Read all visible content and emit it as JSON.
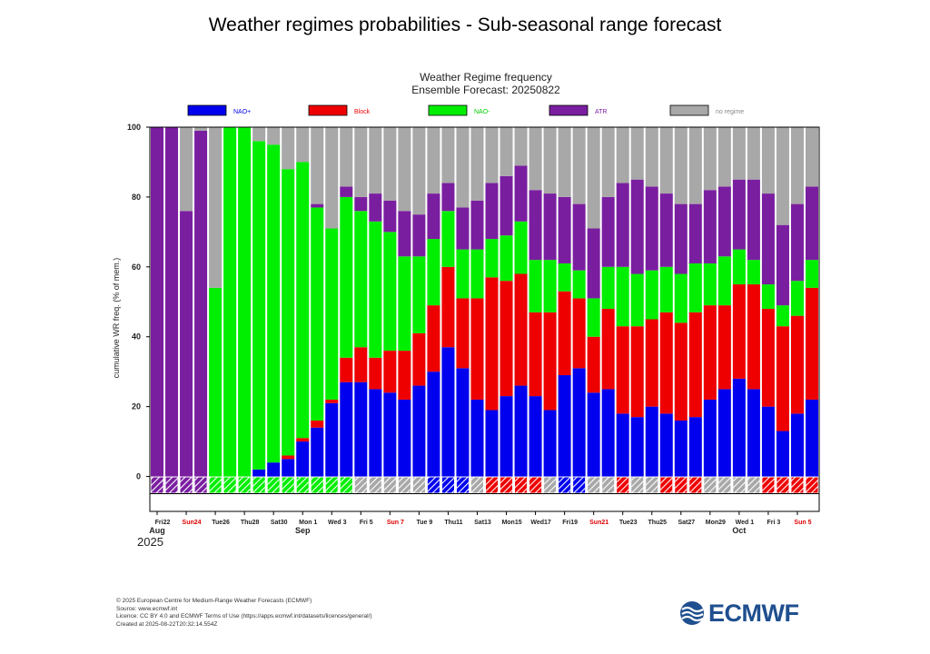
{
  "page_title": "Weather regimes probabilities - Sub-seasonal range forecast",
  "colors": {
    "NAO+": "#0000ee",
    "Block": "#ee0000",
    "NAO-": "#00ee00",
    "ATR": "#7a1ea0",
    "no regime": "#a8a8a8",
    "brand": "#1f4f8f"
  },
  "chart_data": {
    "type": "bar",
    "stacked": true,
    "title": "Weather Regime frequency",
    "subtitle": "Ensemble Forecast: 20250822",
    "ylabel": "cumulative WR freq. (% of mem.)",
    "ylim": [
      -10,
      100
    ],
    "yticks": [
      "0",
      "20",
      "40",
      "60",
      "80",
      "100"
    ],
    "legend": [
      {
        "name": "NAO+",
        "color": "#0000ee"
      },
      {
        "name": "Block",
        "color": "#ee0000"
      },
      {
        "name": "NAO-",
        "color": "#00ee00"
      },
      {
        "name": "ATR",
        "color": "#7a1ea0"
      },
      {
        "name": "no regime",
        "color": "#a8a8a8"
      }
    ],
    "legend_position": "top",
    "year": "2025",
    "x_day_labels": [
      {
        "i": 0,
        "text": "Fri22",
        "red": false
      },
      {
        "i": 2,
        "text": "Sun24",
        "red": true
      },
      {
        "i": 4,
        "text": "Tue26",
        "red": false
      },
      {
        "i": 6,
        "text": "Thu28",
        "red": false
      },
      {
        "i": 8,
        "text": "Sat30",
        "red": false
      },
      {
        "i": 10,
        "text": "Mon 1",
        "red": false
      },
      {
        "i": 12,
        "text": "Wed 3",
        "red": false
      },
      {
        "i": 14,
        "text": "Fri 5",
        "red": false
      },
      {
        "i": 16,
        "text": "Sun 7",
        "red": true
      },
      {
        "i": 18,
        "text": "Tue 9",
        "red": false
      },
      {
        "i": 20,
        "text": "Thu11",
        "red": false
      },
      {
        "i": 22,
        "text": "Sat13",
        "red": false
      },
      {
        "i": 24,
        "text": "Mon15",
        "red": false
      },
      {
        "i": 26,
        "text": "Wed17",
        "red": false
      },
      {
        "i": 28,
        "text": "Fri19",
        "red": false
      },
      {
        "i": 30,
        "text": "Sun21",
        "red": true
      },
      {
        "i": 32,
        "text": "Tue23",
        "red": false
      },
      {
        "i": 34,
        "text": "Thu25",
        "red": false
      },
      {
        "i": 36,
        "text": "Sat27",
        "red": false
      },
      {
        "i": 38,
        "text": "Mon29",
        "red": false
      },
      {
        "i": 40,
        "text": "Wed 1",
        "red": false
      },
      {
        "i": 42,
        "text": "Fri 3",
        "red": false
      },
      {
        "i": 44,
        "text": "Sun 5",
        "red": true
      }
    ],
    "x_month_labels": [
      {
        "i": 0,
        "text": "Aug"
      },
      {
        "i": 10,
        "text": "Sep"
      },
      {
        "i": 40,
        "text": "Oct"
      }
    ],
    "dominant_regime": [
      "ATR",
      "ATR",
      "ATR",
      "ATR",
      "NAO-",
      "NAO-",
      "NAO-",
      "NAO-",
      "NAO-",
      "NAO-",
      "NAO-",
      "NAO-",
      "NAO-",
      "NAO-",
      "no regime",
      "no regime",
      "no regime",
      "no regime",
      "no regime",
      "NAO+",
      "NAO+",
      "NAO+",
      "no regime",
      "Block",
      "Block",
      "Block",
      "Block",
      "no regime",
      "NAO+",
      "NAO+",
      "no regime",
      "no regime",
      "Block",
      "no regime",
      "no regime",
      "Block",
      "Block",
      "Block",
      "no regime",
      "no regime",
      "no regime",
      "no regime",
      "Block",
      "Block",
      "Block",
      "Block"
    ],
    "series": [
      {
        "name": "NAO+",
        "values": [
          0,
          0,
          0,
          0,
          0,
          0,
          0,
          2,
          4,
          5,
          10,
          14,
          21,
          27,
          27,
          25,
          24,
          22,
          26,
          30,
          37,
          31,
          22,
          19,
          23,
          26,
          23,
          19,
          29,
          31,
          24,
          25,
          18,
          17,
          20,
          18,
          16,
          17,
          22,
          25,
          28,
          25,
          20,
          13,
          18,
          22
        ]
      },
      {
        "name": "Block",
        "values": [
          0,
          0,
          0,
          0,
          0,
          0,
          0,
          0,
          0,
          1,
          1,
          2,
          1,
          7,
          10,
          9,
          12,
          14,
          15,
          19,
          23,
          20,
          29,
          38,
          33,
          32,
          24,
          28,
          24,
          20,
          16,
          23,
          25,
          26,
          25,
          29,
          28,
          30,
          27,
          24,
          27,
          30,
          28,
          30,
          28,
          32
        ]
      },
      {
        "name": "NAO-",
        "values": [
          0,
          0,
          0,
          0,
          54,
          100,
          100,
          94,
          91,
          82,
          79,
          61,
          49,
          46,
          39,
          39,
          34,
          27,
          22,
          19,
          16,
          14,
          14,
          11,
          13,
          15,
          15,
          15,
          8,
          8,
          11,
          12,
          17,
          15,
          14,
          13,
          14,
          14,
          12,
          14,
          10,
          7,
          7,
          6,
          10,
          8
        ]
      },
      {
        "name": "ATR",
        "values": [
          100,
          100,
          76,
          99,
          0,
          0,
          0,
          0,
          0,
          0,
          0,
          1,
          0,
          3,
          4,
          8,
          9,
          13,
          12,
          13,
          8,
          12,
          14,
          16,
          17,
          16,
          20,
          19,
          19,
          19,
          20,
          20,
          24,
          27,
          24,
          21,
          20,
          17,
          21,
          20,
          20,
          23,
          26,
          23,
          22,
          21
        ]
      }
    ],
    "total_pct": 100
  },
  "footer": {
    "line1": "© 2025 European Centre for Medium-Range Weather Forecasts (ECMWF)",
    "line2": "Source: www.ecmwf.int",
    "line3": "Licence: CC BY 4.0 and ECMWF Terms of Use (https://apps.ecmwf.int/datasets/licences/general/)",
    "line4": "Created at 2025-08-22T20:32:14.554Z"
  },
  "logo": {
    "text": "ECMWF"
  }
}
